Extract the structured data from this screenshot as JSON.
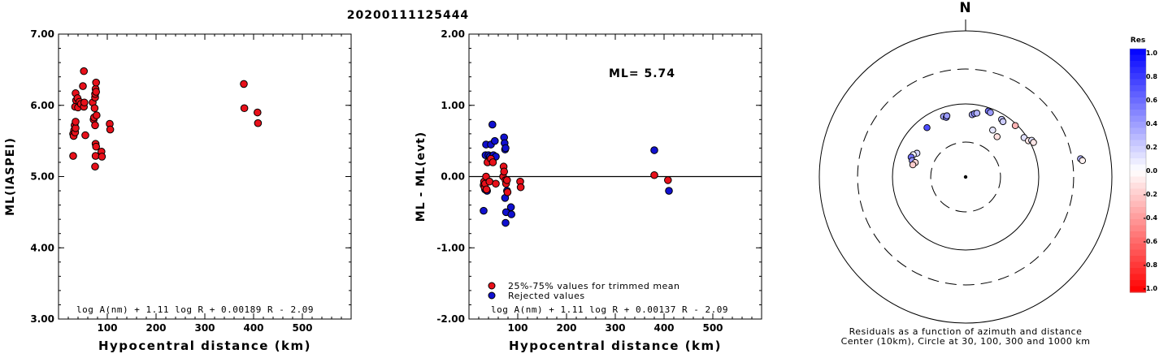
{
  "figure_title": "20200111125444",
  "chart_data": [
    {
      "type": "scatter",
      "name": "ml-vs-distance",
      "xlabel": "Hypocentral distance (km)",
      "ylabel": "ML(IASPEI)",
      "xlim": [
        0,
        600
      ],
      "ylim": [
        3.0,
        7.0
      ],
      "xticks": [
        100,
        200,
        300,
        400,
        500
      ],
      "yticks": [
        3.0,
        4.0,
        5.0,
        6.0,
        7.0
      ],
      "ytick_labels": [
        "3.00",
        "4.00",
        "5.00",
        "6.00",
        "7.00"
      ],
      "xtick_labels": [
        "100",
        "200",
        "300",
        "400",
        "500"
      ],
      "formula": "log A(nm) + 1.11 log R + 0.00189 R - 2.09",
      "point_color": "#e8101a",
      "points": [
        [
          30,
          5.29
        ],
        [
          30,
          5.6
        ],
        [
          31,
          5.57
        ],
        [
          32,
          5.65
        ],
        [
          33,
          5.72
        ],
        [
          34,
          5.62
        ],
        [
          35,
          5.68
        ],
        [
          35,
          5.77
        ],
        [
          34,
          5.98
        ],
        [
          36,
          6.07
        ],
        [
          35,
          6.17
        ],
        [
          39,
          6.1
        ],
        [
          40,
          5.97
        ],
        [
          43,
          6.05
        ],
        [
          46,
          6.02
        ],
        [
          50,
          6.27
        ],
        [
          52,
          6.48
        ],
        [
          52,
          5.98
        ],
        [
          53,
          6.04
        ],
        [
          55,
          5.58
        ],
        [
          70,
          6.04
        ],
        [
          72,
          5.8
        ],
        [
          73,
          5.83
        ],
        [
          74,
          5.96
        ],
        [
          75,
          6.11
        ],
        [
          75,
          6.16
        ],
        [
          76,
          6.23
        ],
        [
          77,
          6.32
        ],
        [
          77,
          6.19
        ],
        [
          78,
          5.86
        ],
        [
          75,
          5.72
        ],
        [
          76,
          5.46
        ],
        [
          77,
          5.42
        ],
        [
          76,
          5.29
        ],
        [
          75,
          5.14
        ],
        [
          88,
          5.35
        ],
        [
          89,
          5.28
        ],
        [
          105,
          5.74
        ],
        [
          106,
          5.66
        ],
        [
          380,
          6.3
        ],
        [
          381,
          5.96
        ],
        [
          408,
          5.9
        ],
        [
          409,
          5.75
        ]
      ]
    },
    {
      "type": "scatter",
      "name": "residual-vs-distance",
      "xlabel": "Hypocentral distance (km)",
      "ylabel": "ML - ML(evt)",
      "xlim": [
        0,
        600
      ],
      "ylim": [
        -2.0,
        2.0
      ],
      "xticks": [
        100,
        200,
        300,
        400,
        500
      ],
      "yticks": [
        -2.0,
        -1.0,
        0.0,
        1.0,
        2.0
      ],
      "ytick_labels": [
        "-2.00",
        "-1.00",
        "0.00",
        "1.00",
        "2.00"
      ],
      "xtick_labels": [
        "100",
        "200",
        "300",
        "400",
        "500"
      ],
      "annotation": "ML= 5.74",
      "formula": "log A(nm) + 1.11 log R + 0.00137 R - 2.09",
      "legend": [
        {
          "label": "25%-75% values for trimmed mean",
          "color": "#e8101a"
        },
        {
          "label": "Rejected values",
          "color": "#1010d0"
        }
      ],
      "used_points": [
        [
          30,
          -0.12
        ],
        [
          31,
          -0.07
        ],
        [
          32,
          -0.15
        ],
        [
          33,
          -0.1
        ],
        [
          35,
          0.0
        ],
        [
          36,
          -0.18
        ],
        [
          38,
          0.2
        ],
        [
          42,
          -0.07
        ],
        [
          45,
          0.25
        ],
        [
          49,
          0.2
        ],
        [
          55,
          -0.1
        ],
        [
          70,
          0.0
        ],
        [
          71,
          0.14
        ],
        [
          72,
          0.07
        ],
        [
          75,
          -0.05
        ],
        [
          76,
          -0.1
        ],
        [
          78,
          -0.05
        ],
        [
          79,
          -0.22
        ],
        [
          105,
          -0.07
        ],
        [
          106,
          -0.15
        ],
        [
          380,
          0.02
        ],
        [
          408,
          -0.05
        ]
      ],
      "rejected_points": [
        [
          30,
          -0.48
        ],
        [
          33,
          -0.18
        ],
        [
          34,
          0.3
        ],
        [
          35,
          0.45
        ],
        [
          37,
          -0.2
        ],
        [
          40,
          0.3
        ],
        [
          43,
          0.28
        ],
        [
          45,
          0.45
        ],
        [
          48,
          0.73
        ],
        [
          50,
          0.3
        ],
        [
          53,
          0.5
        ],
        [
          55,
          0.28
        ],
        [
          72,
          0.55
        ],
        [
          73,
          0.47
        ],
        [
          74,
          0.38
        ],
        [
          75,
          0.4
        ],
        [
          74,
          -0.3
        ],
        [
          76,
          -0.5
        ],
        [
          75,
          -0.65
        ],
        [
          78,
          -0.2
        ],
        [
          86,
          -0.43
        ],
        [
          87,
          -0.53
        ],
        [
          380,
          0.37
        ],
        [
          410,
          -0.2
        ]
      ]
    },
    {
      "type": "scatter",
      "name": "residual-azimuth-map",
      "north_label": "N",
      "caption_line1": "Residuals as a function of azimuth and distance",
      "caption_line2": "Center (10km), Circle at 30, 100, 300 and 1000 km",
      "colorbar_title": "Res",
      "colorbar_ticks": [
        "1.0",
        "0.8",
        "0.6",
        "0.4",
        "0.2",
        "0.0",
        "-0.2",
        "-0.4",
        "-0.6",
        "-0.8",
        "-1.0"
      ],
      "colorbar_range": [
        -1.0,
        1.0
      ],
      "rings_km": [
        30,
        100,
        300,
        1000
      ],
      "stations": [
        {
          "az": 340,
          "dist": 76,
          "res": 0.35
        },
        {
          "az": 342,
          "dist": 72,
          "res": 0.5
        },
        {
          "az": 343,
          "dist": 75,
          "res": 0.4
        },
        {
          "az": 322,
          "dist": 72,
          "res": 0.7
        },
        {
          "az": 6,
          "dist": 72,
          "res": 0.35
        },
        {
          "az": 8,
          "dist": 75,
          "res": 0.45
        },
        {
          "az": 10,
          "dist": 77,
          "res": 0.3
        },
        {
          "az": 19,
          "dist": 90,
          "res": 0.55
        },
        {
          "az": 21,
          "dist": 88,
          "res": 0.4
        },
        {
          "az": 32,
          "dist": 85,
          "res": 0.25
        },
        {
          "az": 34,
          "dist": 82,
          "res": 0.2
        },
        {
          "az": 44,
          "dist": 95,
          "res": -0.3
        },
        {
          "az": 30,
          "dist": 55,
          "res": 0.1
        },
        {
          "az": 38,
          "dist": 50,
          "res": -0.12
        },
        {
          "az": 56,
          "dist": 92,
          "res": 0.12
        },
        {
          "az": 60,
          "dist": 98,
          "res": -0.1
        },
        {
          "az": 61,
          "dist": 108,
          "res": 0.1
        },
        {
          "az": 63,
          "dist": 110,
          "res": -0.1
        },
        {
          "az": 296,
          "dist": 55,
          "res": 0.15
        },
        {
          "az": 293,
          "dist": 60,
          "res": 0.05
        },
        {
          "az": 290,
          "dist": 62,
          "res": 0.55
        },
        {
          "az": 287,
          "dist": 58,
          "res": 0.4
        },
        {
          "az": 286,
          "dist": 52,
          "res": -0.15
        },
        {
          "az": 283,
          "dist": 55,
          "res": -0.2
        },
        {
          "az": 81,
          "dist": 390,
          "res": 0.3
        },
        {
          "az": 82,
          "dist": 410,
          "res": -0.05
        }
      ]
    }
  ]
}
